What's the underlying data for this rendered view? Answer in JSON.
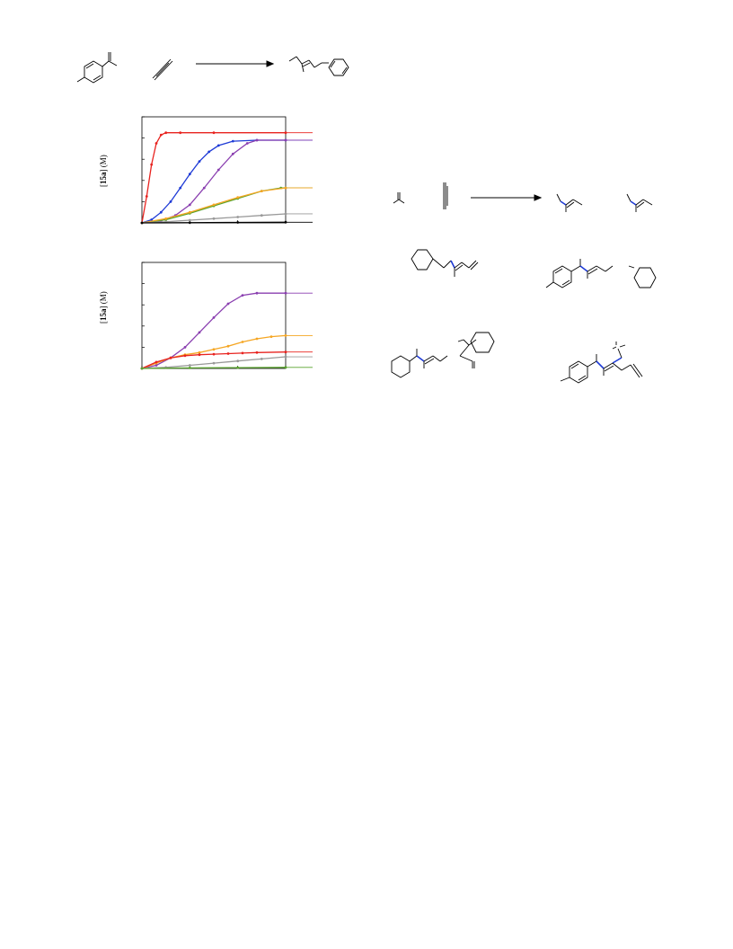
{
  "chart_data": [
    {
      "type": "line",
      "ylabel_bold": "15a",
      "ylabel_pre": "[",
      "ylabel_post": "] (M)",
      "xlim": [
        0,
        3
      ],
      "ylim": [
        0,
        1
      ],
      "series": [
        {
          "color": "#e8231f",
          "values": [
            [
              0,
              0
            ],
            [
              0.1,
              0.25
            ],
            [
              0.2,
              0.55
            ],
            [
              0.3,
              0.75
            ],
            [
              0.4,
              0.83
            ],
            [
              0.5,
              0.85
            ],
            [
              0.8,
              0.85
            ],
            [
              1.5,
              0.85
            ],
            [
              3,
              0.85
            ]
          ]
        },
        {
          "color": "#1f3bd6",
          "values": [
            [
              0,
              0
            ],
            [
              0.2,
              0.03
            ],
            [
              0.4,
              0.1
            ],
            [
              0.6,
              0.2
            ],
            [
              0.8,
              0.33
            ],
            [
              1.0,
              0.46
            ],
            [
              1.2,
              0.58
            ],
            [
              1.4,
              0.67
            ],
            [
              1.6,
              0.73
            ],
            [
              1.9,
              0.77
            ],
            [
              2.4,
              0.78
            ],
            [
              3,
              0.78
            ]
          ]
        },
        {
          "color": "#8a3fb0",
          "values": [
            [
              0,
              0
            ],
            [
              0.4,
              0.02
            ],
            [
              0.7,
              0.07
            ],
            [
              1.0,
              0.17
            ],
            [
              1.3,
              0.33
            ],
            [
              1.6,
              0.5
            ],
            [
              1.9,
              0.65
            ],
            [
              2.2,
              0.75
            ],
            [
              2.4,
              0.78
            ],
            [
              3,
              0.78
            ]
          ]
        },
        {
          "color": "#58a32c",
          "values": [
            [
              0,
              0
            ],
            [
              0.5,
              0.03
            ],
            [
              1.0,
              0.09
            ],
            [
              1.5,
              0.16
            ],
            [
              2.0,
              0.23
            ],
            [
              2.5,
              0.3
            ],
            [
              2.9,
              0.33
            ],
            [
              3,
              0.33
            ]
          ]
        },
        {
          "color": "#f5a623",
          "values": [
            [
              0,
              0
            ],
            [
              0.5,
              0.04
            ],
            [
              1.0,
              0.1
            ],
            [
              1.5,
              0.17
            ],
            [
              2.0,
              0.24
            ],
            [
              2.5,
              0.3
            ],
            [
              3,
              0.33
            ]
          ]
        },
        {
          "color": "#999999",
          "values": [
            [
              0,
              0
            ],
            [
              0.5,
              0.01
            ],
            [
              1.0,
              0.025
            ],
            [
              1.5,
              0.04
            ],
            [
              2.0,
              0.055
            ],
            [
              2.5,
              0.07
            ],
            [
              3,
              0.085
            ]
          ]
        },
        {
          "color": "#000000",
          "values": [
            [
              0,
              0
            ],
            [
              1,
              0.002
            ],
            [
              2,
              0.004
            ],
            [
              3,
              0.006
            ]
          ]
        }
      ]
    },
    {
      "type": "line",
      "ylabel_bold": "15a",
      "ylabel_pre": "[",
      "ylabel_post": "] (M)",
      "xlim": [
        0,
        3
      ],
      "ylim": [
        0,
        1
      ],
      "series": [
        {
          "color": "#8a3fb0",
          "values": [
            [
              0,
              0
            ],
            [
              0.3,
              0.03
            ],
            [
              0.6,
              0.1
            ],
            [
              0.9,
              0.2
            ],
            [
              1.2,
              0.34
            ],
            [
              1.5,
              0.48
            ],
            [
              1.8,
              0.61
            ],
            [
              2.1,
              0.69
            ],
            [
              2.4,
              0.71
            ],
            [
              3,
              0.71
            ]
          ]
        },
        {
          "color": "#f5a623",
          "values": [
            [
              0,
              0
            ],
            [
              0.3,
              0.05
            ],
            [
              0.6,
              0.1
            ],
            [
              0.9,
              0.13
            ],
            [
              1.2,
              0.15
            ],
            [
              1.5,
              0.18
            ],
            [
              1.8,
              0.21
            ],
            [
              2.1,
              0.25
            ],
            [
              2.4,
              0.28
            ],
            [
              2.7,
              0.3
            ],
            [
              3,
              0.31
            ]
          ]
        },
        {
          "color": "#e8231f",
          "values": [
            [
              0,
              0
            ],
            [
              0.3,
              0.06
            ],
            [
              0.6,
              0.1
            ],
            [
              0.9,
              0.12
            ],
            [
              1.2,
              0.13
            ],
            [
              1.5,
              0.135
            ],
            [
              1.8,
              0.14
            ],
            [
              2.1,
              0.145
            ],
            [
              2.4,
              0.15
            ],
            [
              3,
              0.155
            ]
          ]
        },
        {
          "color": "#999999",
          "values": [
            [
              0,
              0
            ],
            [
              0.5,
              0.01
            ],
            [
              1.0,
              0.03
            ],
            [
              1.5,
              0.05
            ],
            [
              2.0,
              0.07
            ],
            [
              2.5,
              0.09
            ],
            [
              3,
              0.11
            ]
          ]
        },
        {
          "color": "#58a32c",
          "values": [
            [
              0,
              0
            ],
            [
              1,
              0.005
            ],
            [
              2,
              0.008
            ],
            [
              3,
              0.01
            ]
          ]
        }
      ]
    }
  ]
}
